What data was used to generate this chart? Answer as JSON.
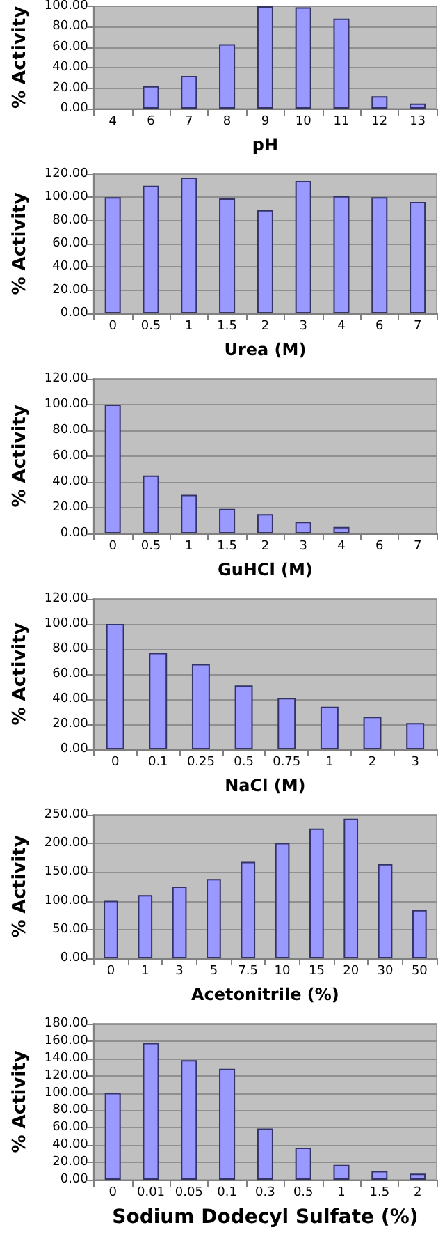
{
  "chart_data": [
    {
      "type": "bar",
      "xlabel": "pH",
      "ylabel": "% Activity",
      "categories": [
        "4",
        "6",
        "7",
        "8",
        "9",
        "10",
        "11",
        "12",
        "13"
      ],
      "values": [
        0,
        22,
        32,
        63,
        100,
        99,
        88,
        12,
        5
      ],
      "color": "#9999ff",
      "ylim": [
        0,
        100
      ],
      "yticks": [
        {
          "value": 0,
          "label": "0.00"
        },
        {
          "value": 20,
          "label": "20.00"
        },
        {
          "value": 40,
          "label": "40.00"
        },
        {
          "value": 60,
          "label": "60.00"
        },
        {
          "value": 80,
          "label": "80.00"
        },
        {
          "value": 100,
          "label": "100.00"
        }
      ],
      "grid": "y"
    },
    {
      "type": "bar",
      "xlabel": "Urea (M)",
      "ylabel": "% Activity",
      "categories": [
        "0",
        "0.5",
        "1",
        "1.5",
        "2",
        "3",
        "4",
        "6",
        "7"
      ],
      "values": [
        100,
        110,
        117,
        99,
        89,
        114,
        101,
        100,
        96
      ],
      "color": "#9999ff",
      "ylim": [
        0,
        120
      ],
      "yticks": [
        {
          "value": 0,
          "label": "0.00"
        },
        {
          "value": 20,
          "label": "20.00"
        },
        {
          "value": 40,
          "label": "40.00"
        },
        {
          "value": 60,
          "label": "60.00"
        },
        {
          "value": 80,
          "label": "80.00"
        },
        {
          "value": 100,
          "label": "100.00"
        },
        {
          "value": 120,
          "label": "120.00"
        }
      ],
      "grid": "y"
    },
    {
      "type": "bar",
      "xlabel": "GuHCl (M)",
      "ylabel": "% Activity",
      "categories": [
        "0",
        "0.5",
        "1",
        "1.5",
        "2",
        "3",
        "4",
        "6",
        "7"
      ],
      "values": [
        100,
        45,
        30,
        19,
        15,
        9,
        5,
        0,
        0
      ],
      "color": "#9999ff",
      "ylim": [
        0,
        120
      ],
      "yticks": [
        {
          "value": 0,
          "label": "0.00"
        },
        {
          "value": 20,
          "label": "20.00"
        },
        {
          "value": 40,
          "label": "40.00"
        },
        {
          "value": 60,
          "label": "60.00"
        },
        {
          "value": 80,
          "label": "80.00"
        },
        {
          "value": 100,
          "label": "100.00"
        },
        {
          "value": 120,
          "label": "120.00"
        }
      ],
      "grid": "y"
    },
    {
      "type": "bar",
      "xlabel": "NaCl (M)",
      "ylabel": "% Activity",
      "categories": [
        "0",
        "0.1",
        "0.25",
        "0.5",
        "0.75",
        "1",
        "2",
        "3"
      ],
      "values": [
        100,
        77,
        68,
        51,
        41,
        34,
        26,
        21
      ],
      "color": "#9999ff",
      "ylim": [
        0,
        120
      ],
      "yticks": [
        {
          "value": 0,
          "label": "0.00"
        },
        {
          "value": 20,
          "label": "20.00"
        },
        {
          "value": 40,
          "label": "40.00"
        },
        {
          "value": 60,
          "label": "60.00"
        },
        {
          "value": 80,
          "label": "80.00"
        },
        {
          "value": 100,
          "label": "100.00"
        },
        {
          "value": 120,
          "label": "120.00"
        }
      ],
      "grid": "y"
    },
    {
      "type": "bar",
      "xlabel": "Acetonitrile (%)",
      "ylabel": "% Activity",
      "categories": [
        "0",
        "1",
        "3",
        "5",
        "7.5",
        "10",
        "15",
        "20",
        "30",
        "50"
      ],
      "values": [
        100,
        110,
        125,
        138,
        168,
        201,
        226,
        243,
        164,
        84
      ],
      "color": "#9999ff",
      "ylim": [
        0,
        250
      ],
      "yticks": [
        {
          "value": 0,
          "label": "0.00"
        },
        {
          "value": 50,
          "label": "50.00"
        },
        {
          "value": 100,
          "label": "100.00"
        },
        {
          "value": 150,
          "label": "150.00"
        },
        {
          "value": 200,
          "label": "200.00"
        },
        {
          "value": 250,
          "label": "250.00"
        }
      ],
      "grid": "y"
    },
    {
      "type": "bar",
      "xlabel": "Sodium Dodecyl Sulfate (%)",
      "ylabel": "% Activity",
      "categories": [
        "0",
        "0.01",
        "0.05",
        "0.1",
        "0.3",
        "0.5",
        "1",
        "1.5",
        "2"
      ],
      "values": [
        100,
        158,
        138,
        128,
        59,
        37,
        17,
        10,
        7
      ],
      "color": "#9999ff",
      "ylim": [
        0,
        180
      ],
      "yticks": [
        {
          "value": 0,
          "label": "0.00"
        },
        {
          "value": 20,
          "label": "20.00"
        },
        {
          "value": 40,
          "label": "40.00"
        },
        {
          "value": 60,
          "label": "60.00"
        },
        {
          "value": 80,
          "label": "80.00"
        },
        {
          "value": 100,
          "label": "100.00"
        },
        {
          "value": 120,
          "label": "120.00"
        },
        {
          "value": 140,
          "label": "140.00"
        },
        {
          "value": 160,
          "label": "160.00"
        },
        {
          "value": 180,
          "label": "180.00"
        }
      ],
      "grid": "y"
    }
  ]
}
